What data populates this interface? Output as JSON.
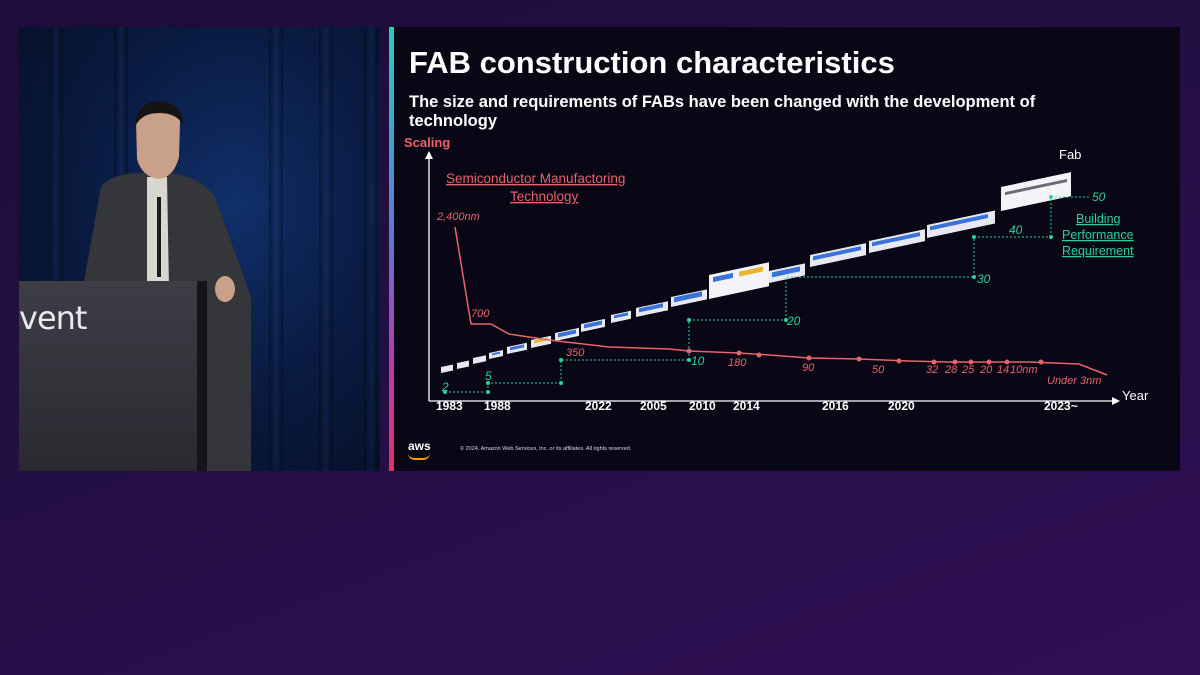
{
  "video": {
    "podium_text": "vent"
  },
  "slide": {
    "title": "FAB construction characteristics",
    "subtitle": "The size and requirements of FABs have been changed with the development of technology",
    "copyright": "© 2024, Amazon Web Services, Inc. or its affiliates. All rights reserved.",
    "logo_text": "aws"
  },
  "colors": {
    "scaling": "#e8636b",
    "building": "#28d39f",
    "background": "#090716"
  },
  "chart_data": {
    "type": "line",
    "title": "",
    "ylabel": "Scaling",
    "xlabel": "Year",
    "x_tick_labels": [
      "1983",
      "1988",
      "2022",
      "2005",
      "2010",
      "2014",
      "2016",
      "2020",
      "2023~"
    ],
    "annotations": {
      "scaling_title_line1": "Semiconductor Manufactoring",
      "scaling_title_line2": "Technology",
      "building_title_line1": "Building",
      "building_title_line2": "Performance",
      "building_title_line3": "Requirement",
      "fab_label": "Fab"
    },
    "series": [
      {
        "name": "Semiconductor Manufactoring Technology",
        "labels": [
          "2,400nm",
          "700",
          "350",
          "180",
          "90",
          "50",
          "32",
          "28",
          "25",
          "20",
          "14",
          "10nm",
          "Under 3nm"
        ]
      },
      {
        "name": "Building Performance Requirement",
        "values": [
          2,
          5,
          10,
          20,
          30,
          40,
          50
        ]
      }
    ]
  }
}
